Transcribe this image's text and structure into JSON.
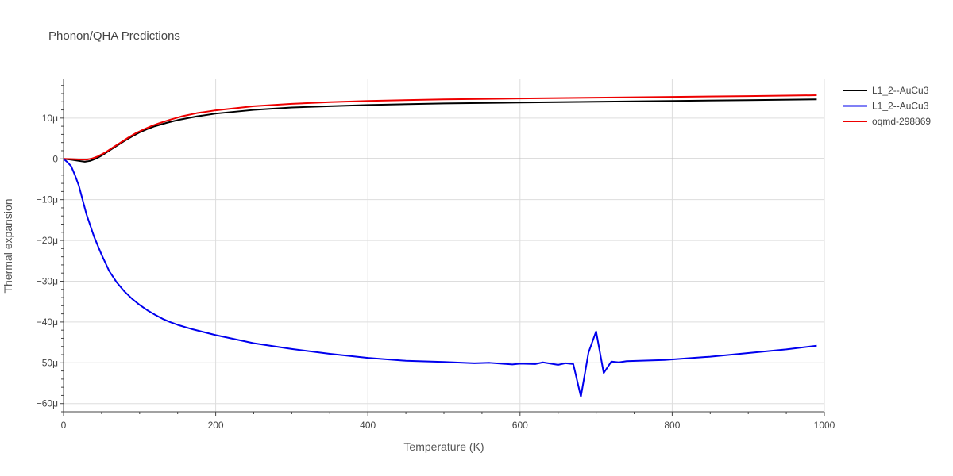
{
  "chart_data": {
    "type": "line",
    "title": "Phonon/QHA Predictions",
    "xlabel": "Temperature (K)",
    "ylabel": "Thermal expansion",
    "xlim": [
      0,
      1000
    ],
    "ylim": [
      -6.2e-05,
      1.95e-05
    ],
    "x_ticks": [
      {
        "value": 0,
        "label": "0"
      },
      {
        "value": 200,
        "label": "200"
      },
      {
        "value": 400,
        "label": "400"
      },
      {
        "value": 600,
        "label": "600"
      },
      {
        "value": 800,
        "label": "800"
      },
      {
        "value": 1000,
        "label": "1000"
      }
    ],
    "y_ticks": [
      {
        "value": 1e-05,
        "label": "10μ"
      },
      {
        "value": 0,
        "label": "0"
      },
      {
        "value": -1e-05,
        "label": "−10μ"
      },
      {
        "value": -2e-05,
        "label": "−20μ"
      },
      {
        "value": -3e-05,
        "label": "−30μ"
      },
      {
        "value": -4e-05,
        "label": "−40μ"
      },
      {
        "value": -5e-05,
        "label": "−50μ"
      },
      {
        "value": -6e-05,
        "label": "−60μ"
      }
    ],
    "grid": true,
    "legend_position": "top-right",
    "series": [
      {
        "name": "L1_2--AuCu3",
        "color": "#000000",
        "points": [
          [
            0,
            0
          ],
          [
            10,
            -2e-07
          ],
          [
            20,
            -5e-07
          ],
          [
            28,
            -7e-07
          ],
          [
            35,
            -5e-07
          ],
          [
            42,
            0
          ],
          [
            50,
            8e-07
          ],
          [
            60,
            2e-06
          ],
          [
            70,
            3.2e-06
          ],
          [
            80,
            4.4e-06
          ],
          [
            90,
            5.5e-06
          ],
          [
            100,
            6.5e-06
          ],
          [
            110,
            7.3e-06
          ],
          [
            120,
            8e-06
          ],
          [
            135,
            8.8e-06
          ],
          [
            150,
            9.5e-06
          ],
          [
            175,
            1.04e-05
          ],
          [
            200,
            1.11e-05
          ],
          [
            250,
            1.2e-05
          ],
          [
            300,
            1.26e-05
          ],
          [
            350,
            1.29e-05
          ],
          [
            400,
            1.32e-05
          ],
          [
            500,
            1.36e-05
          ],
          [
            600,
            1.38e-05
          ],
          [
            700,
            1.4e-05
          ],
          [
            800,
            1.42e-05
          ],
          [
            900,
            1.44e-05
          ],
          [
            990,
            1.46e-05
          ]
        ]
      },
      {
        "name": "L1_2--AuCu3",
        "color": "#0000ee",
        "points": [
          [
            0,
            0
          ],
          [
            5,
            -8e-07
          ],
          [
            10,
            -1.8e-06
          ],
          [
            15,
            -4e-06
          ],
          [
            20,
            -6.5e-06
          ],
          [
            25,
            -1e-05
          ],
          [
            30,
            -1.35e-05
          ],
          [
            40,
            -1.9e-05
          ],
          [
            50,
            -2.35e-05
          ],
          [
            60,
            -2.75e-05
          ],
          [
            70,
            -3.03e-05
          ],
          [
            80,
            -3.25e-05
          ],
          [
            90,
            -3.43e-05
          ],
          [
            100,
            -3.58e-05
          ],
          [
            110,
            -3.71e-05
          ],
          [
            120,
            -3.82e-05
          ],
          [
            130,
            -3.92e-05
          ],
          [
            140,
            -4e-05
          ],
          [
            150,
            -4.07e-05
          ],
          [
            170,
            -4.18e-05
          ],
          [
            200,
            -4.32e-05
          ],
          [
            250,
            -4.52e-05
          ],
          [
            300,
            -4.66e-05
          ],
          [
            350,
            -4.78e-05
          ],
          [
            400,
            -4.88e-05
          ],
          [
            450,
            -4.95e-05
          ],
          [
            500,
            -4.98e-05
          ],
          [
            540,
            -5.01e-05
          ],
          [
            560,
            -5e-05
          ],
          [
            590,
            -5.04e-05
          ],
          [
            600,
            -5.02e-05
          ],
          [
            620,
            -5.03e-05
          ],
          [
            630,
            -4.99e-05
          ],
          [
            650,
            -5.05e-05
          ],
          [
            660,
            -5.01e-05
          ],
          [
            670,
            -5.03e-05
          ],
          [
            680,
            -5.83e-05
          ],
          [
            690,
            -4.75e-05
          ],
          [
            700,
            -4.23e-05
          ],
          [
            710,
            -5.25e-05
          ],
          [
            720,
            -4.97e-05
          ],
          [
            730,
            -4.99e-05
          ],
          [
            740,
            -4.96e-05
          ],
          [
            790,
            -4.93e-05
          ],
          [
            850,
            -4.85e-05
          ],
          [
            900,
            -4.76e-05
          ],
          [
            950,
            -4.67e-05
          ],
          [
            990,
            -4.58e-05
          ]
        ]
      },
      {
        "name": "oqmd-298869",
        "color": "#ee0000",
        "points": [
          [
            0,
            0
          ],
          [
            10,
            -5e-08
          ],
          [
            20,
            -1.5e-07
          ],
          [
            30,
            -2e-07
          ],
          [
            38,
            1e-07
          ],
          [
            45,
            6e-07
          ],
          [
            55,
            1.6e-06
          ],
          [
            65,
            2.8e-06
          ],
          [
            75,
            4e-06
          ],
          [
            85,
            5.2e-06
          ],
          [
            95,
            6.3e-06
          ],
          [
            105,
            7.2e-06
          ],
          [
            115,
            8e-06
          ],
          [
            125,
            8.7e-06
          ],
          [
            140,
            9.6e-06
          ],
          [
            155,
            1.04e-05
          ],
          [
            175,
            1.12e-05
          ],
          [
            200,
            1.19e-05
          ],
          [
            250,
            1.29e-05
          ],
          [
            300,
            1.35e-05
          ],
          [
            350,
            1.39e-05
          ],
          [
            400,
            1.42e-05
          ],
          [
            500,
            1.46e-05
          ],
          [
            600,
            1.48e-05
          ],
          [
            700,
            1.5e-05
          ],
          [
            800,
            1.52e-05
          ],
          [
            900,
            1.54e-05
          ],
          [
            990,
            1.56e-05
          ]
        ]
      }
    ]
  }
}
